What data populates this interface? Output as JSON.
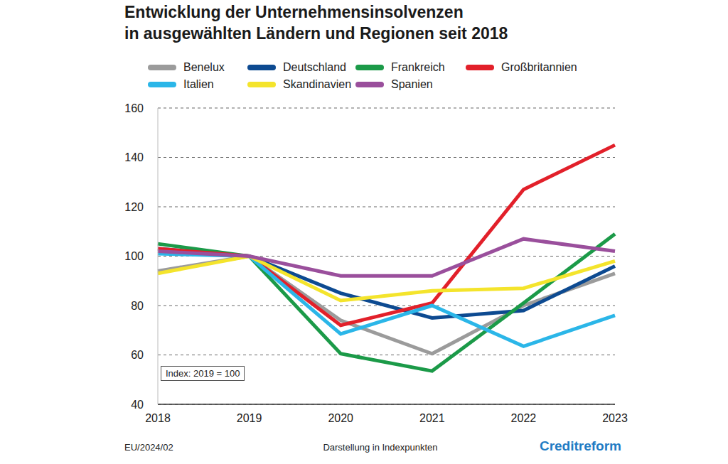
{
  "chart_data": {
    "type": "line",
    "title": "Entwicklung der Unternehmensinsolvenzen\nin ausgewählten Ländern und Regionen seit 2018",
    "categories": [
      "2018",
      "2019",
      "2020",
      "2021",
      "2022",
      "2023"
    ],
    "series": [
      {
        "name": "Benelux",
        "color": "#9b9b9b",
        "values": [
          94,
          100,
          74,
          60.5,
          80,
          93
        ]
      },
      {
        "name": "Deutschland",
        "color": "#0d4a91",
        "values": [
          103,
          100,
          85,
          75,
          78,
          96
        ]
      },
      {
        "name": "Frankreich",
        "color": "#1b9a48",
        "values": [
          105,
          100,
          60.5,
          53.5,
          81,
          109
        ]
      },
      {
        "name": "Großbritannien",
        "color": "#e2202a",
        "values": [
          103,
          100,
          72,
          81,
          127,
          145
        ]
      },
      {
        "name": "Italien",
        "color": "#2bb6e8",
        "values": [
          101,
          100,
          68.5,
          80,
          63.5,
          76
        ]
      },
      {
        "name": "Skandinavien",
        "color": "#f4e42c",
        "values": [
          93,
          100,
          82,
          86,
          87,
          98
        ]
      },
      {
        "name": "Spanien",
        "color": "#9a4f9c",
        "values": [
          102,
          100,
          92,
          92,
          107,
          102
        ]
      }
    ],
    "ylim": [
      40,
      160
    ],
    "yticks": [
      40,
      60,
      80,
      100,
      120,
      140,
      160
    ],
    "grid": true,
    "legend": "top",
    "annotation": "Index: 2019 = 100",
    "footer": {
      "left": "EU/2024/02",
      "center": "Darstellung in Indexpunkten",
      "right": "Creditreform"
    }
  }
}
